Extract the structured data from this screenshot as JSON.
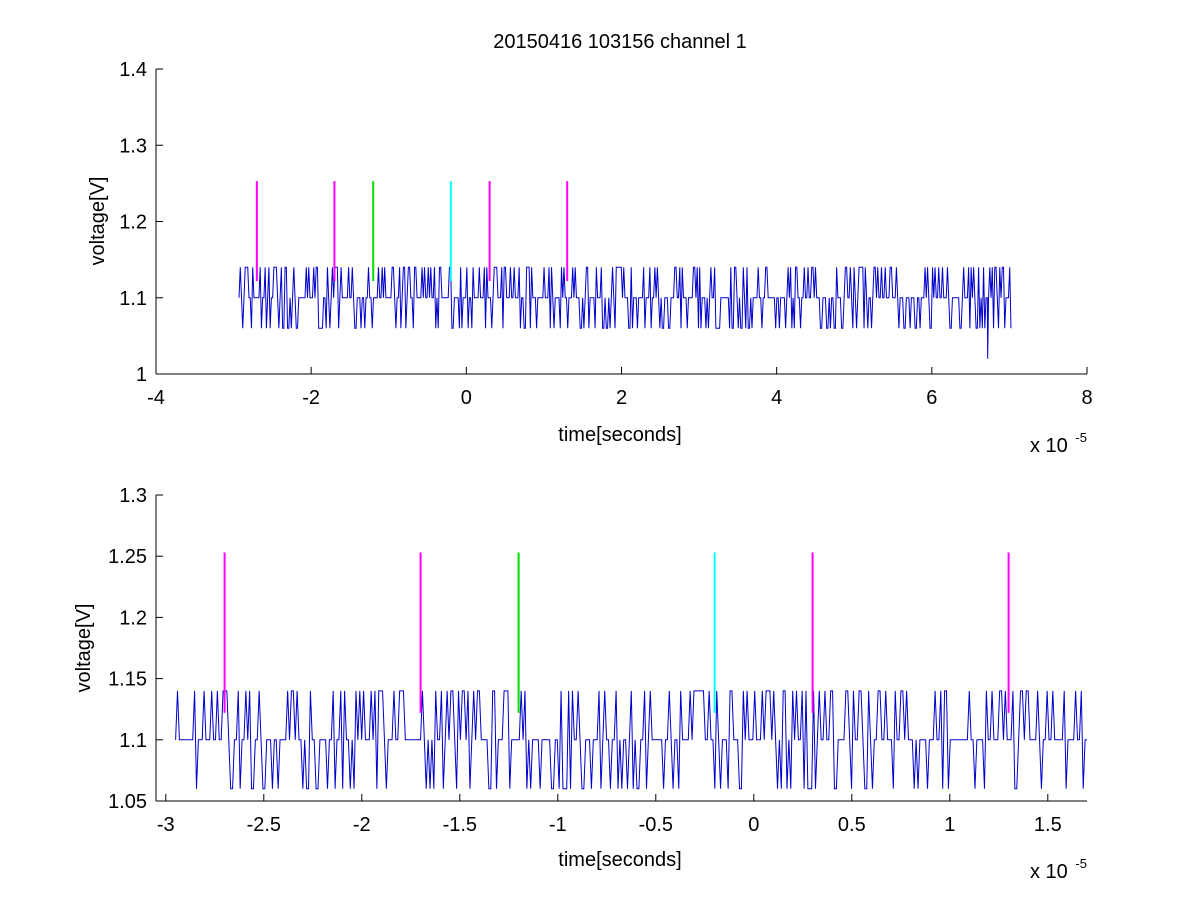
{
  "figure_title": "20150416 103156 channel 1",
  "chart_data": [
    {
      "type": "line",
      "title": "20150416 103156 channel 1",
      "xlabel": "time[seconds]",
      "ylabel": "voltage[V]",
      "x_multiplier_label": "x 10",
      "x_multiplier_exponent": "-5",
      "xlim": [
        -4,
        8
      ],
      "ylim": [
        1,
        1.4
      ],
      "xticks": [
        "-4",
        "-2",
        "0",
        "2",
        "4",
        "6",
        "8"
      ],
      "yticks": [
        "1",
        "1.1",
        "1.2",
        "1.3",
        "1.4"
      ],
      "grid": false,
      "series": [
        {
          "color": "#0000cc",
          "kind": "voltage trace",
          "x_range": [
            -2.93,
            7.02
          ],
          "baseline": 1.1,
          "levels": [
            1.06,
            1.1,
            1.14
          ],
          "min_excursion": {
            "x": 6.72,
            "y": 1.02
          }
        }
      ],
      "markers": [
        {
          "x": -2.7,
          "y": [
            1.122,
            1.253
          ],
          "color": "#ff00ff"
        },
        {
          "x": -1.7,
          "y": [
            1.122,
            1.253
          ],
          "color": "#ff00ff"
        },
        {
          "x": -1.2,
          "y": [
            1.122,
            1.253
          ],
          "color": "#00dd00"
        },
        {
          "x": -0.2,
          "y": [
            1.122,
            1.253
          ],
          "color": "#00ffff"
        },
        {
          "x": 0.3,
          "y": [
            1.122,
            1.253
          ],
          "color": "#ff00ff"
        },
        {
          "x": 1.3,
          "y": [
            1.122,
            1.253
          ],
          "color": "#ff00ff"
        }
      ]
    },
    {
      "type": "line",
      "title": "",
      "xlabel": "time[seconds]",
      "ylabel": "voltage[V]",
      "x_multiplier_label": "x 10",
      "x_multiplier_exponent": "-5",
      "xlim": [
        -3.05,
        1.7
      ],
      "ylim": [
        1.05,
        1.3
      ],
      "xticks": [
        "-3",
        "-2.5",
        "-2",
        "-1.5",
        "-1",
        "-0.5",
        "0",
        "0.5",
        "1",
        "1.5"
      ],
      "yticks": [
        "1.05",
        "1.1",
        "1.15",
        "1.2",
        "1.25",
        "1.3"
      ],
      "grid": false,
      "series": [
        {
          "color": "#0000cc",
          "kind": "voltage trace",
          "x_range": [
            -2.95,
            1.7
          ],
          "baseline": 1.1,
          "levels": [
            1.06,
            1.1,
            1.14
          ]
        }
      ],
      "markers": [
        {
          "x": -2.7,
          "y": [
            1.122,
            1.253
          ],
          "color": "#ff00ff"
        },
        {
          "x": -1.7,
          "y": [
            1.122,
            1.253
          ],
          "color": "#ff00ff"
        },
        {
          "x": -1.2,
          "y": [
            1.122,
            1.253
          ],
          "color": "#00dd00"
        },
        {
          "x": -0.2,
          "y": [
            1.122,
            1.253
          ],
          "color": "#00ffff"
        },
        {
          "x": 0.3,
          "y": [
            1.122,
            1.253
          ],
          "color": "#ff00ff"
        },
        {
          "x": 1.3,
          "y": [
            1.122,
            1.253
          ],
          "color": "#ff00ff"
        }
      ]
    }
  ]
}
